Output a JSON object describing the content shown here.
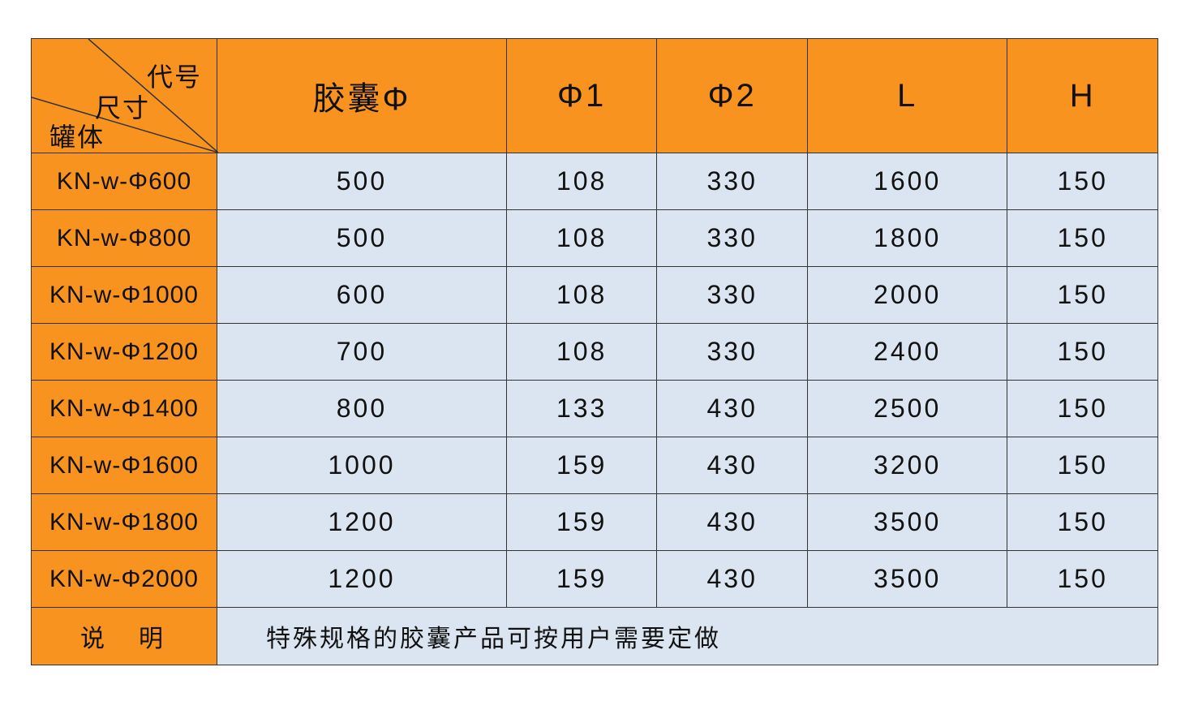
{
  "header": {
    "corner": {
      "top_right": "代号",
      "middle": "尺寸",
      "bottom_left": "罐体"
    },
    "columns": [
      "胶囊Φ",
      "Φ1",
      "Φ2",
      "L",
      "H"
    ]
  },
  "rows": [
    {
      "model": "KN-w-Φ600",
      "values": [
        "500",
        "108",
        "330",
        "1600",
        "150"
      ]
    },
    {
      "model": "KN-w-Φ800",
      "values": [
        "500",
        "108",
        "330",
        "1800",
        "150"
      ]
    },
    {
      "model": "KN-w-Φ1000",
      "values": [
        "600",
        "108",
        "330",
        "2000",
        "150"
      ]
    },
    {
      "model": "KN-w-Φ1200",
      "values": [
        "700",
        "108",
        "330",
        "2400",
        "150"
      ]
    },
    {
      "model": "KN-w-Φ1400",
      "values": [
        "800",
        "133",
        "430",
        "2500",
        "150"
      ]
    },
    {
      "model": "KN-w-Φ1600",
      "values": [
        "1000",
        "159",
        "430",
        "3200",
        "150"
      ]
    },
    {
      "model": "KN-w-Φ1800",
      "values": [
        "1200",
        "159",
        "430",
        "3500",
        "150"
      ]
    },
    {
      "model": "KN-w-Φ2000",
      "values": [
        "1200",
        "159",
        "430",
        "3500",
        "150"
      ]
    }
  ],
  "note": {
    "label": "说　明",
    "text": "特殊规格的胶囊产品可按用户需要定做"
  },
  "colors": {
    "header": "#f7931e",
    "cells": "#dbe5f1"
  }
}
